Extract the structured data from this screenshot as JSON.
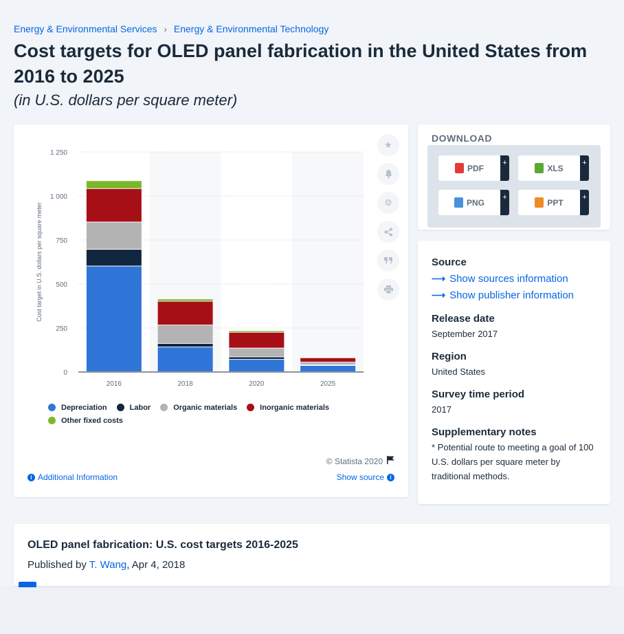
{
  "breadcrumb": {
    "item1": "Energy & Environmental Services",
    "separator": "›",
    "item2": "Energy & Environmental Technology"
  },
  "title": "Cost targets for OLED panel fabrication in the United States from 2016 to 2025",
  "subtitle": "(in U.S. dollars per square meter)",
  "chart_data": {
    "type": "bar",
    "stacked": true,
    "categories": [
      "2016",
      "2018",
      "2020",
      "2025"
    ],
    "series": [
      {
        "name": "Depreciation",
        "color": "#2f76d8",
        "values": [
          600,
          140,
          70,
          35
        ]
      },
      {
        "name": "Labor",
        "color": "#11273f",
        "values": [
          95,
          20,
          14,
          4
        ]
      },
      {
        "name": "Organic materials",
        "color": "#b3b3b3",
        "values": [
          155,
          105,
          50,
          15
        ]
      },
      {
        "name": "Inorganic materials",
        "color": "#a70f17",
        "values": [
          190,
          135,
          90,
          25
        ]
      },
      {
        "name": "Other fixed costs",
        "color": "#7ab829",
        "values": [
          45,
          13,
          9,
          3
        ]
      }
    ],
    "ylabel": "Cost target in U.S. dollars per square meter",
    "yticks": [
      "0",
      "250",
      "500",
      "750",
      "1 000",
      "1 250"
    ],
    "ylim": [
      0,
      1250
    ],
    "grid": true,
    "legend_position": "bottom"
  },
  "chart_footer": {
    "copyright": "© Statista 2020",
    "additional_info": "Additional Information",
    "show_source": "Show source"
  },
  "side_icons": [
    "star-icon",
    "bell-icon",
    "gear-icon",
    "share-icon",
    "quote-icon",
    "print-icon"
  ],
  "download": {
    "title": "DOWNLOAD",
    "buttons": [
      {
        "label": "PDF",
        "color": "#e4393c"
      },
      {
        "label": "XLS",
        "color": "#5aa833"
      },
      {
        "label": "PNG",
        "color": "#4a90d9"
      },
      {
        "label": "PPT",
        "color": "#f08a24"
      }
    ],
    "plus": "+"
  },
  "info": {
    "source_label": "Source",
    "show_sources": "Show sources information",
    "show_publisher": "Show publisher information",
    "release_label": "Release date",
    "release_value": "September 2017",
    "region_label": "Region",
    "region_value": "United States",
    "survey_label": "Survey time period",
    "survey_value": "2017",
    "notes_label": "Supplementary notes",
    "notes_value": "* Potential route to meeting a goal of 100 U.S. dollars per square meter by traditional methods."
  },
  "publication": {
    "title": "OLED panel fabrication: U.S. cost targets 2016-2025",
    "published_by": "Published by",
    "author": "T. Wang",
    "date": ", Apr 4, 2018"
  }
}
